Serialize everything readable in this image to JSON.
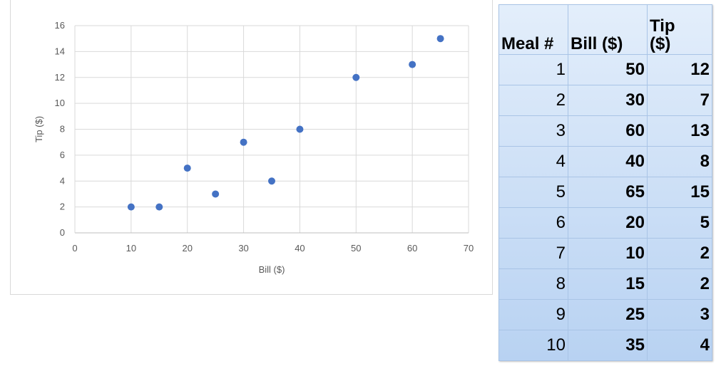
{
  "chart_data": {
    "type": "scatter",
    "title": "",
    "xlabel": "Bill ($)",
    "ylabel": "Tip ($)",
    "xlim": [
      0,
      70
    ],
    "ylim": [
      0,
      16
    ],
    "xticks": [
      0,
      10,
      20,
      30,
      40,
      50,
      60,
      70
    ],
    "yticks": [
      0,
      2,
      4,
      6,
      8,
      10,
      12,
      14,
      16
    ],
    "grid": true,
    "legend": "none",
    "marker_color": "#4472c4",
    "series": [
      {
        "x": [
          50,
          30,
          60,
          40,
          65,
          20,
          10,
          15,
          25,
          35
        ],
        "y": [
          12,
          7,
          13,
          8,
          15,
          5,
          2,
          2,
          3,
          4
        ]
      }
    ]
  },
  "table": {
    "headers": [
      "Meal #",
      "Bill ($)",
      "Tip ($)"
    ],
    "rows": [
      {
        "meal": "1",
        "bill": "50",
        "tip": "12"
      },
      {
        "meal": "2",
        "bill": "30",
        "tip": "7"
      },
      {
        "meal": "3",
        "bill": "60",
        "tip": "13"
      },
      {
        "meal": "4",
        "bill": "40",
        "tip": "8"
      },
      {
        "meal": "5",
        "bill": "65",
        "tip": "15"
      },
      {
        "meal": "6",
        "bill": "20",
        "tip": "5"
      },
      {
        "meal": "7",
        "bill": "10",
        "tip": "2"
      },
      {
        "meal": "8",
        "bill": "15",
        "tip": "2"
      },
      {
        "meal": "9",
        "bill": "25",
        "tip": "3"
      },
      {
        "meal": "10",
        "bill": "35",
        "tip": "4"
      }
    ]
  }
}
